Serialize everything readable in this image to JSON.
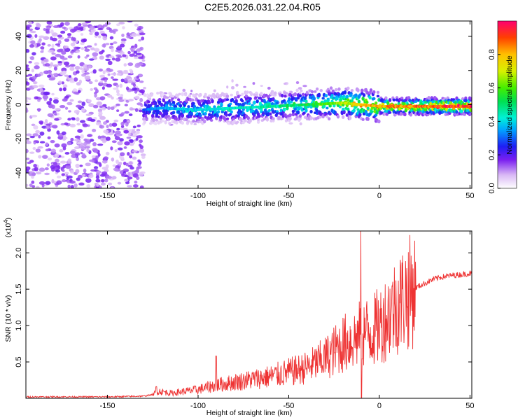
{
  "title": "C2E5.2026.031.22.04.R05",
  "chart_data": [
    {
      "type": "heatmap",
      "xlabel": "Height of straight line (km)",
      "ylabel": "Frequency (Hz)",
      "xlim": [
        -195,
        51
      ],
      "ylim": [
        -49,
        49
      ],
      "xticks": [
        -150,
        -100,
        -50,
        0,
        50
      ],
      "yticks": [
        -40,
        -20,
        0,
        20,
        40
      ],
      "xtick_labels": [
        "-150",
        "-100",
        "-50",
        "0",
        "50"
      ],
      "ytick_labels": [
        "-40",
        "-20",
        "0",
        "20",
        "40"
      ],
      "colorbar": {
        "label": "Normalized spectral amplitude",
        "range": [
          0,
          1
        ],
        "ticks": [
          0.0,
          0.2,
          0.4,
          0.6,
          0.8
        ],
        "tick_labels": [
          "0.0",
          "0.2",
          "0.4",
          "0.6",
          "0.8"
        ]
      },
      "ridge": [
        {
          "x": -130,
          "freq": -3,
          "amp": 0.3
        },
        {
          "x": -120,
          "freq": -2,
          "amp": 0.38
        },
        {
          "x": -100,
          "freq": -3,
          "amp": 0.42
        },
        {
          "x": -80,
          "freq": -2,
          "amp": 0.45
        },
        {
          "x": -60,
          "freq": -1,
          "amp": 0.48
        },
        {
          "x": -40,
          "freq": 0,
          "amp": 0.55
        },
        {
          "x": -20,
          "freq": 1,
          "amp": 0.7
        },
        {
          "x": -10,
          "freq": 0,
          "amp": 0.8
        },
        {
          "x": 0,
          "freq": -1,
          "amp": 0.85
        },
        {
          "x": 20,
          "freq": -1,
          "amp": 0.92
        },
        {
          "x": 50,
          "freq": -1,
          "amp": 0.98
        }
      ],
      "noise_region": {
        "x_from": -195,
        "x_to": -130,
        "amp": 0.15
      },
      "grid": false
    },
    {
      "type": "line",
      "xlabel": "Height of straight line (km)",
      "ylabel": "SNR (10 * v/v)",
      "y_exponent_label": "(x10",
      "y_exponent": "4",
      "y_exponent_close": ")",
      "xlim": [
        -195,
        51
      ],
      "ylim": [
        0,
        2.3
      ],
      "xticks": [
        -150,
        -100,
        -50,
        0,
        50
      ],
      "yticks": [
        0.5,
        1.0,
        1.5,
        2.0
      ],
      "xtick_labels": [
        "-150",
        "-100",
        "-50",
        "0",
        "50"
      ],
      "ytick_labels": [
        "0.5",
        "1.0",
        "1.5",
        "2.0"
      ],
      "color": "#ee3333",
      "series": [
        {
          "x": [
            -195,
            -170,
            -150,
            -130,
            -125,
            -122,
            -115,
            -100,
            -90,
            -80,
            -70,
            -60,
            -50,
            -40,
            -30,
            -25,
            -20,
            -15,
            -12,
            -10,
            -8,
            -5,
            0,
            5,
            10,
            15,
            20,
            25,
            30,
            35,
            40,
            45,
            51
          ],
          "values": [
            0.02,
            0.02,
            0.02,
            0.03,
            0.05,
            0.1,
            0.07,
            0.12,
            0.18,
            0.22,
            0.26,
            0.3,
            0.36,
            0.42,
            0.55,
            0.65,
            0.75,
            0.8,
            0.85,
            0.9,
            0.92,
            0.9,
            1.0,
            1.15,
            1.3,
            1.42,
            1.52,
            1.58,
            1.64,
            1.67,
            1.69,
            1.7,
            1.72
          ],
          "spikes": [
            {
              "x": -10,
              "value": 2.3
            },
            {
              "x": -123,
              "value": 0.16
            },
            {
              "x": -90,
              "value": 0.58
            }
          ]
        }
      ],
      "grid": false
    }
  ]
}
